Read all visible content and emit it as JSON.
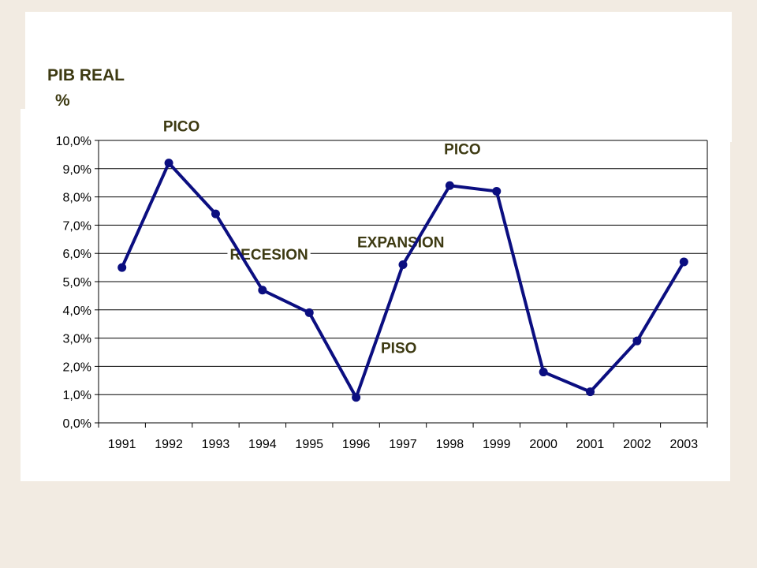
{
  "chart_data": {
    "type": "line",
    "ylabel_line1": "PIB REAL",
    "ylabel_line2": "%",
    "categories": [
      "1991",
      "1992",
      "1993",
      "1994",
      "1995",
      "1996",
      "1997",
      "1998",
      "1999",
      "2000",
      "2001",
      "2002",
      "2003"
    ],
    "series": [
      {
        "values": [
          5.5,
          9.2,
          7.4,
          4.7,
          3.9,
          0.9,
          5.6,
          8.4,
          8.2,
          1.8,
          1.1,
          2.9,
          5.7
        ]
      }
    ],
    "ylim": [
      0,
      10
    ],
    "yticks": [
      0,
      1,
      2,
      3,
      4,
      5,
      6,
      7,
      8,
      9,
      10
    ],
    "ytick_labels": [
      "0,0%",
      "1,0%",
      "2,0%",
      "3,0%",
      "4,0%",
      "5,0%",
      "6,0%",
      "7,0%",
      "8,0%",
      "9,0%",
      "10,0%"
    ],
    "grid": true,
    "line_color": "#0B0E80",
    "annotations": [
      {
        "text": "PICO",
        "near": "1992",
        "position": "above"
      },
      {
        "text": "PICO",
        "near": "1998",
        "position": "above"
      },
      {
        "text": "RECESION",
        "near": "1993",
        "position": "below-right"
      },
      {
        "text": "EXPANSION",
        "near": "1997",
        "position": "above-right"
      },
      {
        "text": "PISO",
        "near": "1997",
        "position": "below"
      }
    ]
  }
}
